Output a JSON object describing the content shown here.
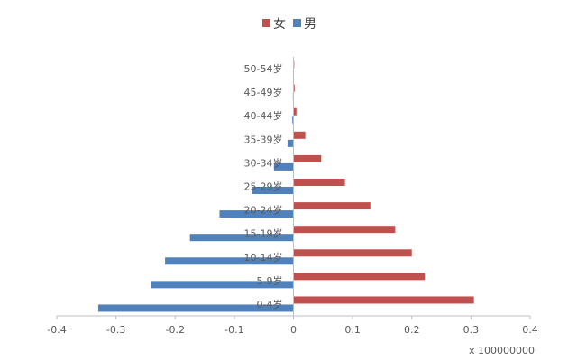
{
  "chart_data": {
    "type": "bar",
    "orientation": "horizontal",
    "categories": [
      "0-4岁",
      "5-9岁",
      "10-14岁",
      "15-19岁",
      "20-24岁",
      "25-29岁",
      "30-34岁",
      "35-39岁",
      "40-44岁",
      "45-49岁",
      "50-54岁"
    ],
    "series": [
      {
        "name": "女",
        "color": "#c0504d",
        "values": [
          0.305,
          0.222,
          0.2,
          0.172,
          0.13,
          0.087,
          0.047,
          0.02,
          0.005,
          0.002,
          0.001
        ]
      },
      {
        "name": "男",
        "color": "#4f81bd",
        "values": [
          -0.33,
          -0.24,
          -0.217,
          -0.175,
          -0.125,
          -0.07,
          -0.033,
          -0.01,
          -0.002,
          -0.001,
          0
        ]
      }
    ],
    "xlim": [
      -0.4,
      0.4
    ],
    "xticks": [
      -0.4,
      -0.3,
      -0.2,
      -0.1,
      0,
      0.1,
      0.2,
      0.3,
      0.4
    ],
    "xtick_labels": [
      "-0.4",
      "-0.3",
      "-0.2",
      "-0.1",
      "0",
      "0.1",
      "0.2",
      "0.3",
      "0.4"
    ],
    "unit_label": "x 100000000",
    "legend_position": "top",
    "grid": false
  }
}
